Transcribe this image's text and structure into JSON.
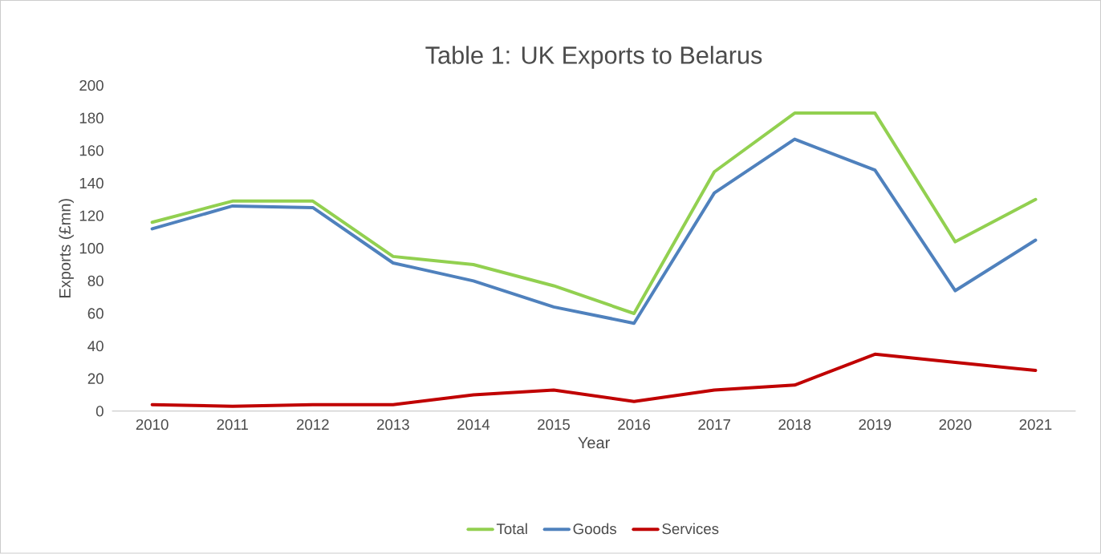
{
  "chart_data": {
    "type": "line",
    "title": "Table 1: UK Exports to Belarus",
    "xlabel": "Year",
    "ylabel": "Exports (£mn)",
    "categories": [
      "2010",
      "2011",
      "2012",
      "2013",
      "2014",
      "2015",
      "2016",
      "2017",
      "2018",
      "2019",
      "2020",
      "2021"
    ],
    "series": [
      {
        "name": "Total",
        "color": "#92d050",
        "values": [
          116,
          129,
          129,
          95,
          90,
          77,
          60,
          147,
          183,
          183,
          104,
          130
        ]
      },
      {
        "name": "Goods",
        "color": "#4f81bd",
        "values": [
          112,
          126,
          125,
          91,
          80,
          64,
          54,
          134,
          167,
          148,
          74,
          105
        ]
      },
      {
        "name": "Services",
        "color": "#c00000",
        "values": [
          4,
          3,
          4,
          4,
          10,
          13,
          6,
          13,
          16,
          35,
          30,
          25
        ]
      }
    ],
    "ylim": [
      0,
      200
    ],
    "yticks": [
      0,
      20,
      40,
      60,
      80,
      100,
      120,
      140,
      160,
      180,
      200
    ],
    "grid": false,
    "legend": "bottom"
  }
}
